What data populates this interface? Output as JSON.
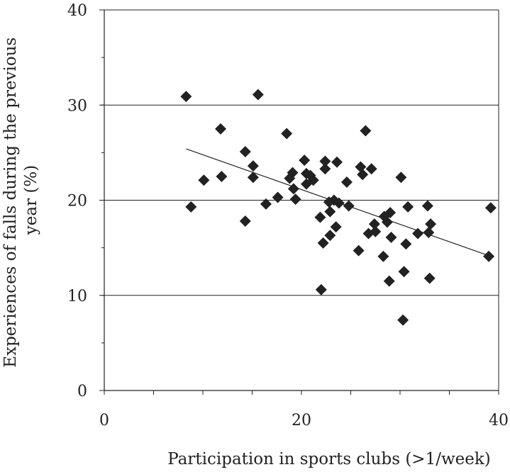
{
  "chart_data": {
    "type": "scatter",
    "title": "",
    "xlabel": "Participation  in sports clubs (>1/week)",
    "ylabel_lines": [
      "Experiences of falls during the previous",
      "year (%)"
    ],
    "xlim": [
      0,
      40
    ],
    "ylim": [
      0,
      40
    ],
    "xticks": [
      0,
      20,
      40
    ],
    "yticks": [
      0,
      10,
      20,
      30,
      40
    ],
    "grid": "horizontal",
    "marker": "diamond",
    "marker_color": "#222222",
    "trendline": {
      "x": [
        8.3,
        39.2
      ],
      "y": [
        25.4,
        14.1
      ]
    },
    "points": [
      [
        8.3,
        30.9
      ],
      [
        8.8,
        19.3
      ],
      [
        10.1,
        22.1
      ],
      [
        11.8,
        27.5
      ],
      [
        11.9,
        22.5
      ],
      [
        14.3,
        25.1
      ],
      [
        14.3,
        17.8
      ],
      [
        15.1,
        23.6
      ],
      [
        15.1,
        22.4
      ],
      [
        15.6,
        31.1
      ],
      [
        16.4,
        19.6
      ],
      [
        17.6,
        20.3
      ],
      [
        18.5,
        27.0
      ],
      [
        18.8,
        22.3
      ],
      [
        19.1,
        22.9
      ],
      [
        19.2,
        21.2
      ],
      [
        19.4,
        20.1
      ],
      [
        20.3,
        24.2
      ],
      [
        20.5,
        22.8
      ],
      [
        20.5,
        21.7
      ],
      [
        20.9,
        22.6
      ],
      [
        21.2,
        22.1
      ],
      [
        21.9,
        18.2
      ],
      [
        22.0,
        10.6
      ],
      [
        22.2,
        15.5
      ],
      [
        22.4,
        24.1
      ],
      [
        22.4,
        23.3
      ],
      [
        22.8,
        19.8
      ],
      [
        22.9,
        18.8
      ],
      [
        22.9,
        16.3
      ],
      [
        23.3,
        20.0
      ],
      [
        23.5,
        17.2
      ],
      [
        23.6,
        24.0
      ],
      [
        23.8,
        19.7
      ],
      [
        24.6,
        21.9
      ],
      [
        24.8,
        19.4
      ],
      [
        25.8,
        14.7
      ],
      [
        26.0,
        23.5
      ],
      [
        26.2,
        22.7
      ],
      [
        26.5,
        27.3
      ],
      [
        26.8,
        16.5
      ],
      [
        27.1,
        23.3
      ],
      [
        27.4,
        17.5
      ],
      [
        27.5,
        16.7
      ],
      [
        28.3,
        14.1
      ],
      [
        28.4,
        18.3
      ],
      [
        28.7,
        17.7
      ],
      [
        28.9,
        11.5
      ],
      [
        29.0,
        18.7
      ],
      [
        29.1,
        16.1
      ],
      [
        30.1,
        22.4
      ],
      [
        30.3,
        7.4
      ],
      [
        30.4,
        12.5
      ],
      [
        30.6,
        15.4
      ],
      [
        30.8,
        19.3
      ],
      [
        31.8,
        16.5
      ],
      [
        32.8,
        19.4
      ],
      [
        32.9,
        16.6
      ],
      [
        33.0,
        11.8
      ],
      [
        33.1,
        17.5
      ],
      [
        39.0,
        14.1
      ],
      [
        39.2,
        19.2
      ]
    ]
  }
}
